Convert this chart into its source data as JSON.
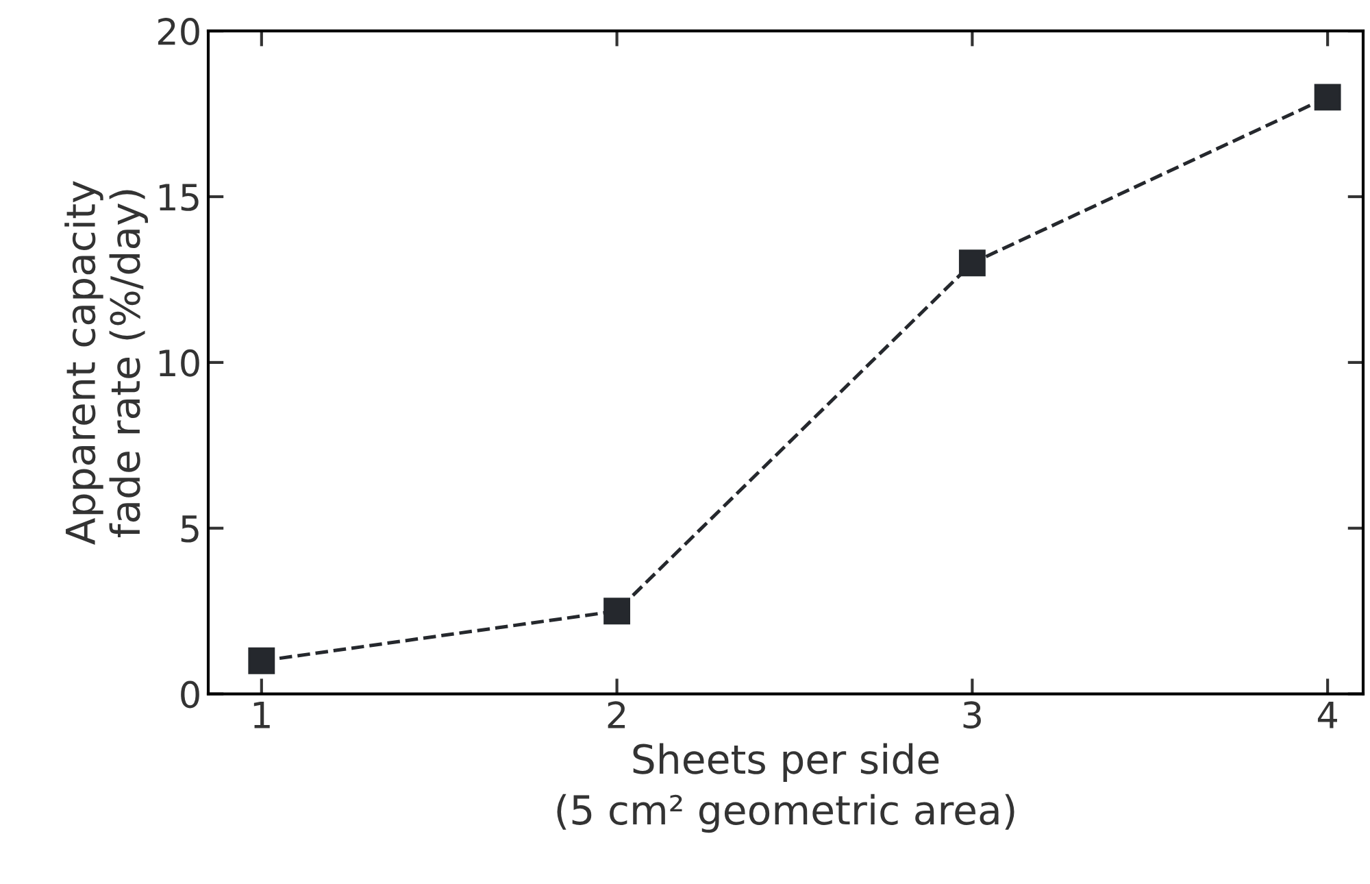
{
  "chart_data": {
    "type": "line",
    "xlabel": "Sheets per side\n(5 cm² geometric area)",
    "ylabel": "Apparent capacity\nfade rate (%/day)",
    "x": [
      1,
      2,
      3,
      4
    ],
    "series": [
      {
        "color": "#25282d",
        "values": [
          1.0,
          2.5,
          13,
          18
        ]
      }
    ],
    "xlim": [
      0.85,
      4.1
    ],
    "ylim": [
      0,
      20
    ],
    "xticks": [
      1,
      2,
      3,
      4
    ],
    "yticks": [
      0,
      5,
      10,
      15,
      20
    ],
    "marker": "square",
    "line_style": "dashed",
    "grid": false,
    "legend": false
  }
}
